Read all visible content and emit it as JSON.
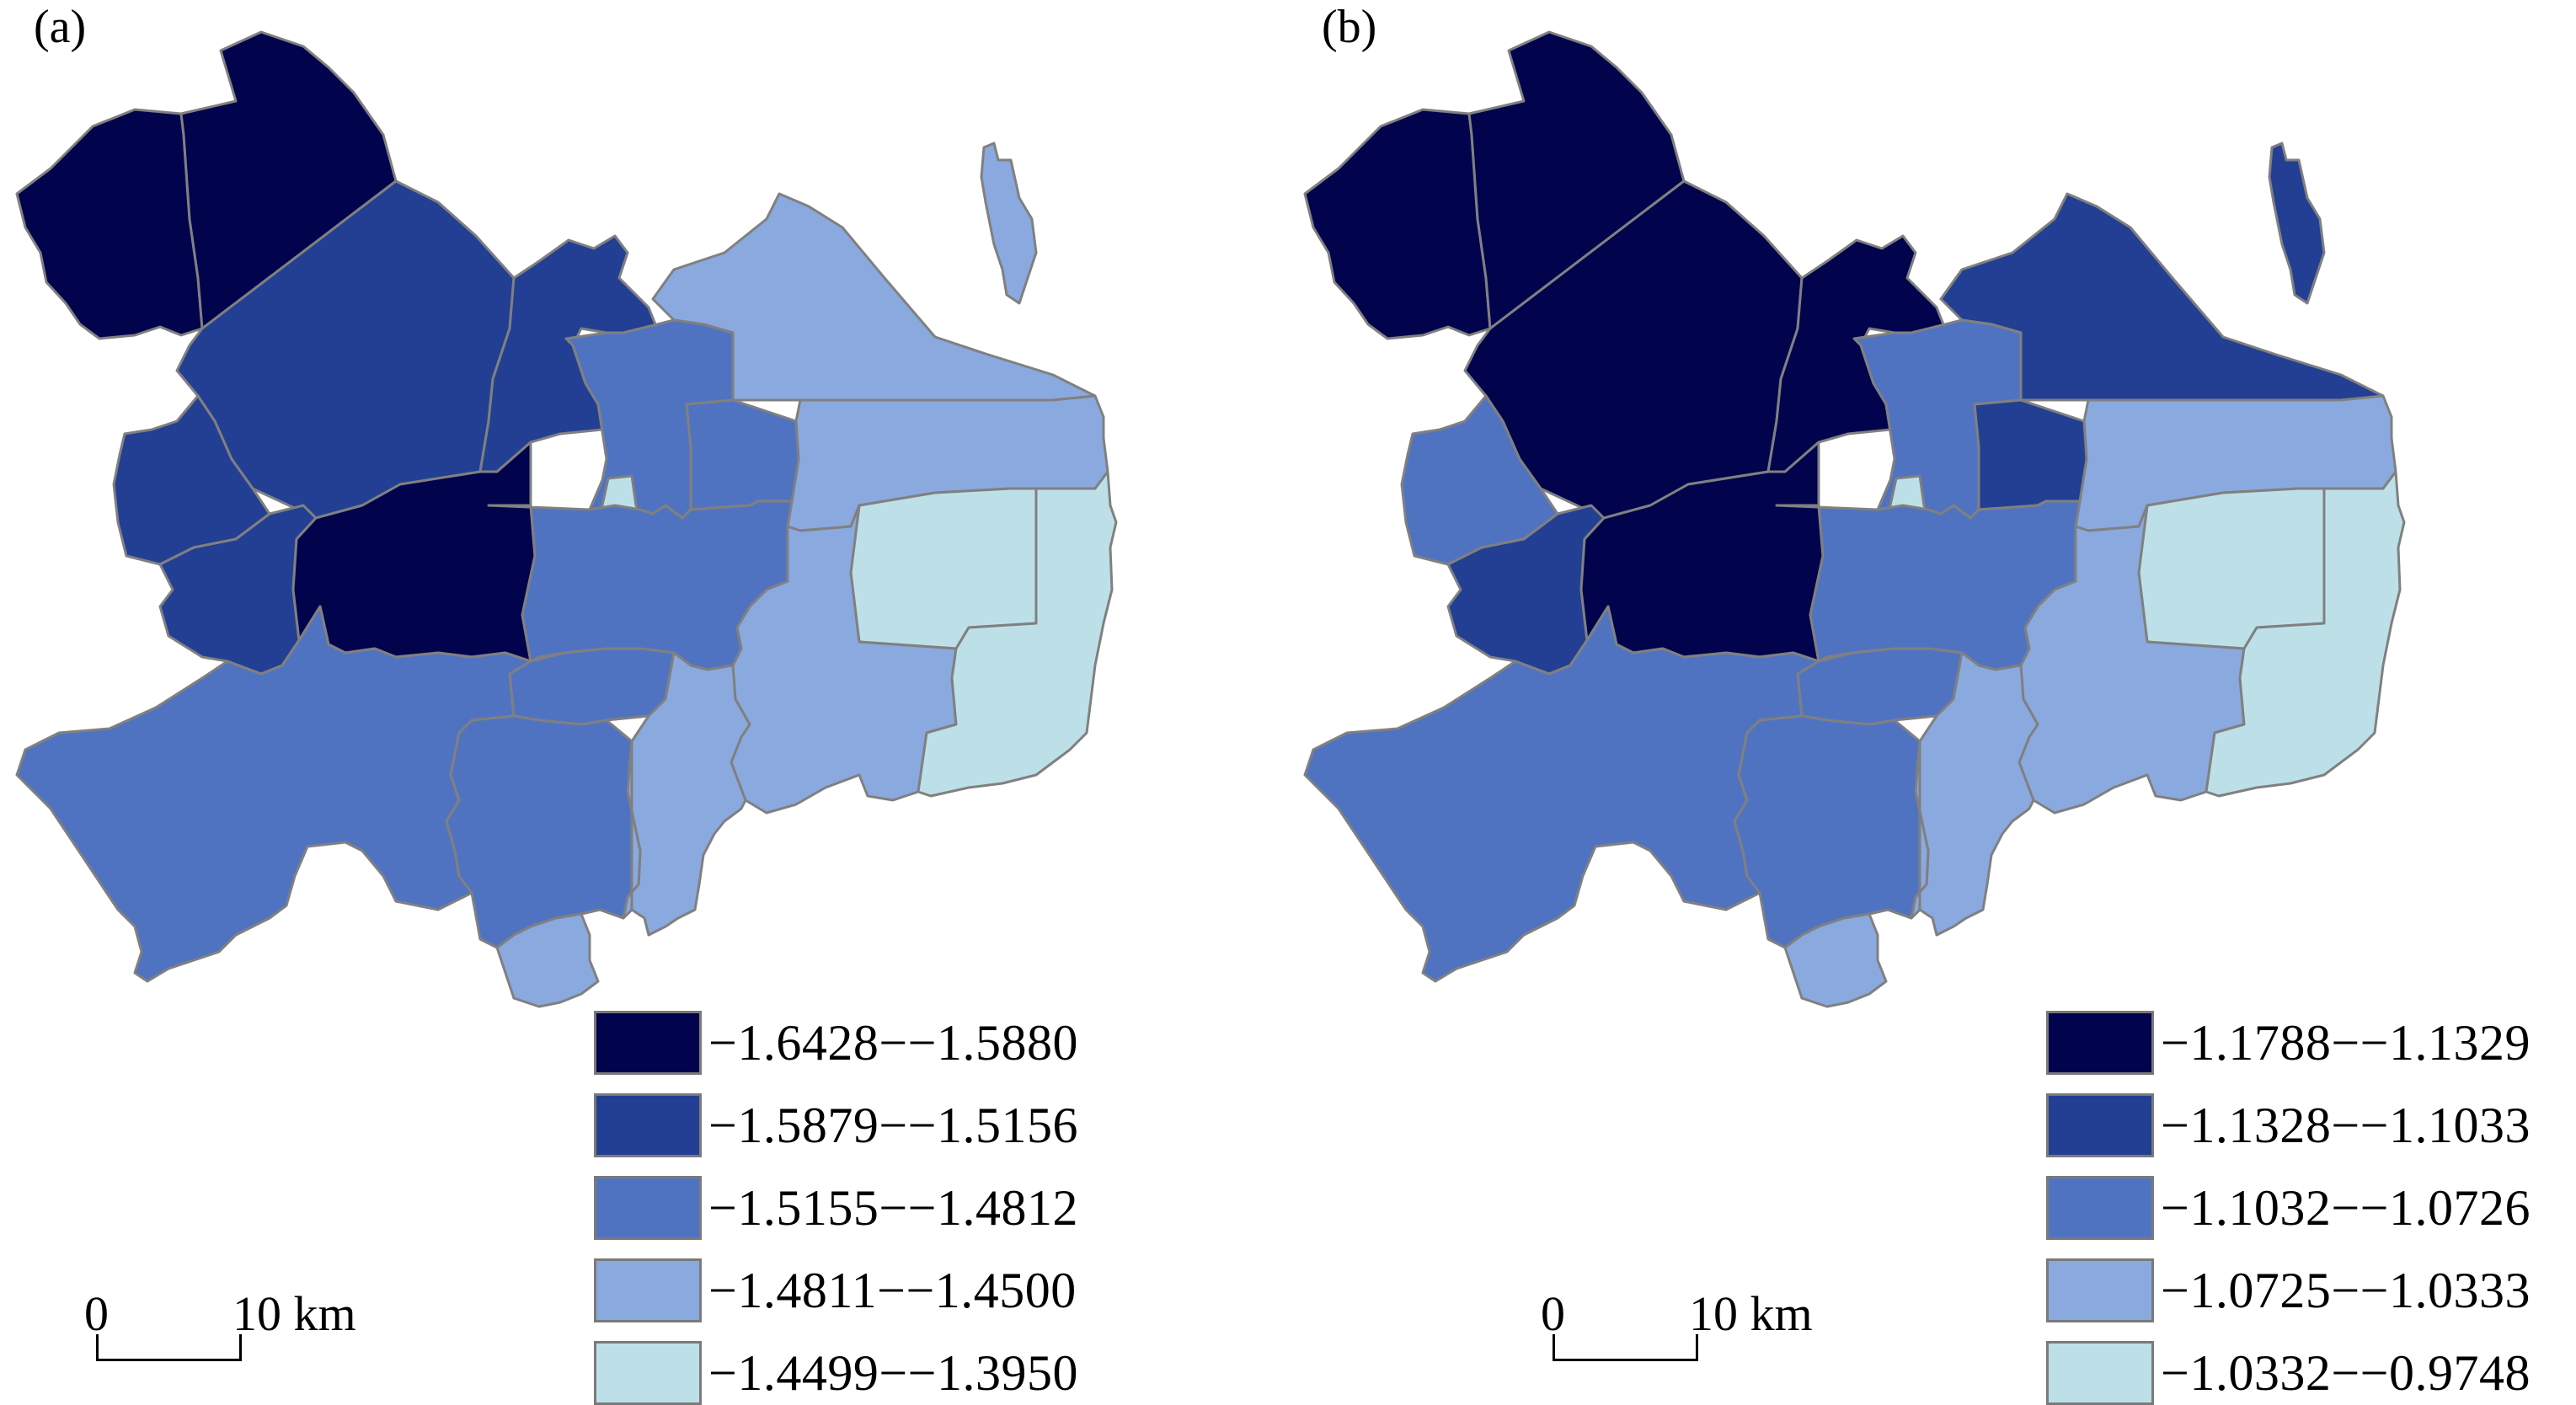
{
  "colors": {
    "class1": "#01034d",
    "class2": "#223f93",
    "class3": "#5073c1",
    "class4": "#8aa9df",
    "class5": "#bde0e8",
    "boundary": "#808080"
  },
  "panels": [
    {
      "label": "(a)",
      "legend": [
        {
          "range": "−1.6428−−1.5880",
          "color": "#01034d"
        },
        {
          "range": "−1.5879−−1.5156",
          "color": "#223f93"
        },
        {
          "range": "−1.5155−−1.4812",
          "color": "#5073c1"
        },
        {
          "range": "−1.4811−−1.4500",
          "color": "#8aa9df"
        },
        {
          "range": "−1.4499−−1.3950",
          "color": "#bde0e8"
        }
      ],
      "scale": {
        "start_label": "0",
        "end_label": "10 km"
      },
      "region_classes": {
        "northwest": 1,
        "north": 1,
        "west_central": 2,
        "changping": 2,
        "west_hills": 2,
        "west_lower": 2,
        "central_dark": 1,
        "northeast": 4,
        "islet": 4,
        "east_upper": 4,
        "east_lower": 5,
        "southeast_mid": 4,
        "southeast_far": 5,
        "north_core": 3,
        "core_ne": 3,
        "core_light": 5,
        "core_mid": 3,
        "south_core": 3,
        "south_core2": 4,
        "southwest": 3,
        "south_mid": 3,
        "south_light": 4
      }
    },
    {
      "label": "(b)",
      "legend": [
        {
          "range": "−1.1788−−1.1329",
          "color": "#01034d"
        },
        {
          "range": "−1.1328−−1.1033",
          "color": "#223f93"
        },
        {
          "range": "−1.1032−−1.0726",
          "color": "#5073c1"
        },
        {
          "range": "−1.0725−−1.0333",
          "color": "#8aa9df"
        },
        {
          "range": "−1.0332−−0.9748",
          "color": "#bde0e8"
        }
      ],
      "scale": {
        "start_label": "0",
        "end_label": "10 km"
      },
      "region_classes": {
        "northwest": 1,
        "north": 1,
        "west_central": 1,
        "changping": 1,
        "west_hills": 3,
        "west_lower": 2,
        "central_dark": 1,
        "northeast": 2,
        "islet": 2,
        "east_upper": 4,
        "east_lower": 5,
        "southeast_mid": 4,
        "southeast_far": 5,
        "north_core": 3,
        "core_ne": 2,
        "core_light": 5,
        "core_mid": 3,
        "south_core": 3,
        "south_core2": 4,
        "southwest": 3,
        "south_mid": 3,
        "south_light": 4
      }
    }
  ]
}
